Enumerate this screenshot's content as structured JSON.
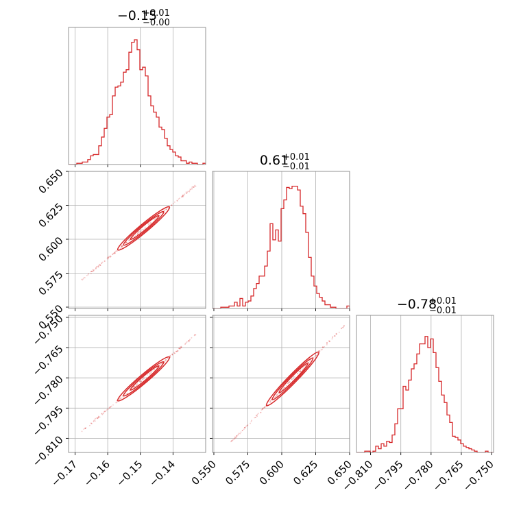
{
  "chart_data": {
    "type": "corner",
    "color": "#d62728",
    "grid": true,
    "titles": [
      {
        "value": "−0.15",
        "upper": "+0.01",
        "lower": "−0.00"
      },
      {
        "value": "0.61",
        "upper": "+0.01",
        "lower": "−0.01"
      },
      {
        "value": "−0.78",
        "upper": "+0.01",
        "lower": "−0.01"
      }
    ],
    "params": [
      {
        "range": [
          -0.172,
          -0.13
        ],
        "ticks": [
          -0.17,
          -0.16,
          -0.15,
          -0.14
        ],
        "tick_labels": [
          "−0.17",
          "−0.16",
          "−0.15",
          "−0.14"
        ],
        "hist_bins": [
          -0.172,
          -0.13
        ],
        "hist_counts": [
          0,
          0,
          0,
          0.01,
          0.01,
          0.02,
          0.02,
          0.04,
          0.07,
          0.08,
          0.08,
          0.15,
          0.22,
          0.29,
          0.38,
          0.4,
          0.55,
          0.62,
          0.63,
          0.66,
          0.74,
          0.76,
          0.9,
          0.98,
          1.0,
          0.92,
          0.76,
          0.78,
          0.71,
          0.55,
          0.47,
          0.42,
          0.38,
          0.3,
          0.28,
          0.21,
          0.15,
          0.12,
          0.1,
          0.07,
          0.06,
          0.03,
          0.03,
          0.01,
          0.02,
          0.01,
          0.01,
          0.0,
          0.0,
          0.01
        ]
      },
      {
        "range": [
          0.549,
          0.65
        ],
        "ticks": [
          0.55,
          0.575,
          0.6,
          0.625,
          0.65
        ],
        "tick_labels": [
          "0.550",
          "0.575",
          "0.600",
          "0.625",
          "0.650"
        ],
        "hist_counts": [
          0,
          0,
          0,
          0.01,
          0.01,
          0.01,
          0.02,
          0.02,
          0.05,
          0.02,
          0.08,
          0.02,
          0.05,
          0.06,
          0.1,
          0.16,
          0.2,
          0.26,
          0.26,
          0.34,
          0.46,
          0.68,
          0.55,
          0.63,
          0.54,
          0.8,
          0.87,
          0.97,
          0.96,
          0.98,
          0.98,
          0.95,
          0.82,
          0.76,
          0.61,
          0.41,
          0.26,
          0.18,
          0.12,
          0.09,
          0.06,
          0.03,
          0.03,
          0.01,
          0.01,
          0.0,
          0.0,
          0.0,
          0.0,
          0.02
        ]
      },
      {
        "range": [
          -0.817,
          -0.749
        ],
        "ticks": [
          -0.81,
          -0.795,
          -0.78,
          -0.765,
          -0.75
        ],
        "tick_labels": [
          "−0.810",
          "−0.795",
          "−0.780",
          "−0.765",
          "−0.750"
        ],
        "hist_counts": [
          0,
          0,
          0,
          0.01,
          0.01,
          0.0,
          0.01,
          0.05,
          0.03,
          0.07,
          0.05,
          0.09,
          0.08,
          0.14,
          0.23,
          0.35,
          0.35,
          0.53,
          0.5,
          0.58,
          0.67,
          0.71,
          0.79,
          0.87,
          0.87,
          0.93,
          0.84,
          0.91,
          0.8,
          0.68,
          0.57,
          0.46,
          0.4,
          0.3,
          0.24,
          0.13,
          0.12,
          0.1,
          0.07,
          0.05,
          0.04,
          0.03,
          0.02,
          0.01,
          0.0,
          0.0,
          0.0,
          0.01,
          0.0,
          0.0
        ]
      }
    ],
    "pairs": [
      {
        "x_param": 0,
        "y_param": 1,
        "slope": 2.0,
        "x_center": -0.149,
        "y_center": 0.608,
        "x_span": [
          -0.168,
          -0.133
        ]
      },
      {
        "x_param": 0,
        "y_param": 2,
        "slope": 1.37,
        "x_center": -0.149,
        "y_center": -0.7805,
        "x_span": [
          -0.168,
          -0.133
        ]
      },
      {
        "x_param": 1,
        "y_param": 2,
        "slope": 0.69,
        "x_center": 0.608,
        "y_center": -0.7805,
        "x_span": [
          0.562,
          0.647
        ]
      }
    ]
  }
}
